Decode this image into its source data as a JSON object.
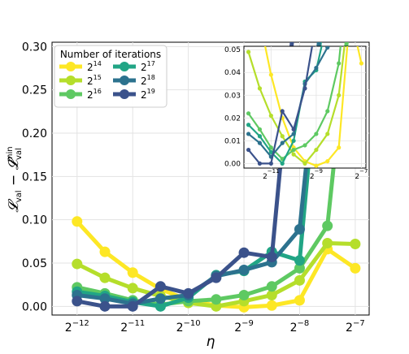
{
  "chart_data": {
    "type": "line",
    "xlabel": "η",
    "ylabel": "𝓛val − 𝓛valmin",
    "x_scale": "log2",
    "x": [
      -12,
      -11.5,
      -11,
      -10.5,
      -10,
      -9.5,
      -9,
      -8.5,
      -8,
      -7.5,
      -7
    ],
    "x_ticks": [
      -12,
      -11,
      -10,
      -9,
      -8,
      -7
    ],
    "x_tick_labels": [
      "2−12",
      "2−11",
      "2−10",
      "2−9",
      "2−8",
      "2−7"
    ],
    "ylim": [
      -0.01,
      0.305
    ],
    "y_ticks": [
      "0.00",
      "0.05",
      "0.10",
      "0.15",
      "0.20",
      "0.25",
      "0.30"
    ],
    "grid": true,
    "legend": {
      "title": "Number of iterations",
      "placement": "top-left",
      "entries": [
        {
          "base": "2",
          "exp": "14"
        },
        {
          "base": "2",
          "exp": "17"
        },
        {
          "base": "2",
          "exp": "15"
        },
        {
          "base": "2",
          "exp": "18"
        },
        {
          "base": "2",
          "exp": "16"
        },
        {
          "base": "2",
          "exp": "19"
        }
      ]
    },
    "series": [
      {
        "name": "2^14",
        "color": "#fde725",
        "values": [
          0.098,
          0.063,
          0.039,
          0.02,
          0.007,
          0.001,
          -0.001,
          0.001,
          0.007,
          0.066,
          0.044
        ]
      },
      {
        "name": "2^15",
        "color": "#b5de2b",
        "values": [
          0.049,
          0.033,
          0.021,
          0.012,
          0.004,
          0.0,
          0.006,
          0.013,
          0.03,
          0.073,
          0.072
        ]
      },
      {
        "name": "2^16",
        "color": "#5ec962",
        "values": [
          0.022,
          0.015,
          0.007,
          0.002,
          0.006,
          0.008,
          0.013,
          0.023,
          0.044,
          0.093,
          0.4
        ]
      },
      {
        "name": "2^17",
        "color": "#21a585",
        "values": [
          0.017,
          0.012,
          0.005,
          0.0,
          0.01,
          0.036,
          0.041,
          0.063,
          0.053,
          0.4,
          null
        ]
      },
      {
        "name": "2^18",
        "color": "#2c728e",
        "values": [
          0.013,
          0.009,
          0.003,
          0.009,
          0.013,
          0.035,
          0.042,
          0.051,
          0.089,
          0.4,
          null
        ]
      },
      {
        "name": "2^19",
        "color": "#3b528b",
        "values": [
          0.006,
          0.0,
          0.0,
          0.023,
          0.015,
          0.033,
          0.062,
          0.057,
          0.4,
          null,
          null
        ]
      }
    ],
    "inset": {
      "x_ticks": [
        -11,
        -9,
        -7
      ],
      "x_tick_labels": [
        "2−11",
        "2−9",
        "2−7"
      ],
      "ylim": [
        -0.002,
        0.0515
      ],
      "y_ticks": [
        "0.00",
        "0.01",
        "0.02",
        "0.03",
        "0.04",
        "0.05"
      ],
      "xlim": [
        -12.2,
        -6.8
      ]
    }
  }
}
